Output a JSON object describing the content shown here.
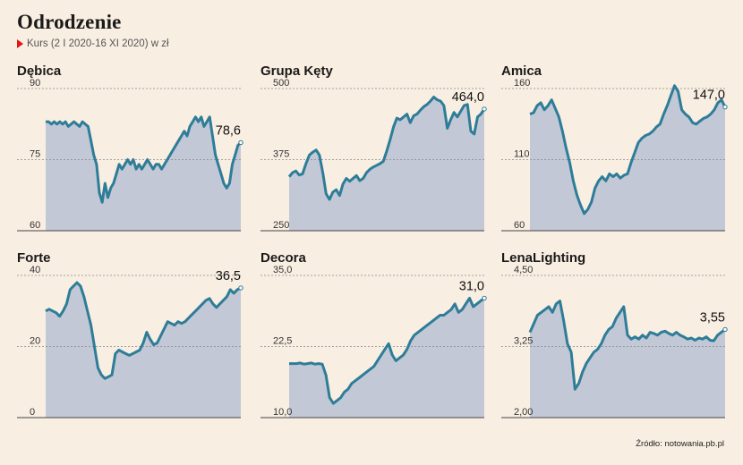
{
  "header": {
    "title": "Odrodzenie",
    "subtitle": "Kurs (2 I 2020-16 XI 2020) w zł"
  },
  "source": "Źródło: notowania.pb.pl",
  "colors": {
    "line": "#2e7d98",
    "area": "#c3c8d6",
    "accent": "#e0161b",
    "grid": "#888888"
  },
  "chart_data": [
    {
      "type": "area",
      "title": "Dębica",
      "ylim": [
        60,
        90
      ],
      "yticks": [
        "90",
        "75",
        "60"
      ],
      "last_label": "78,6",
      "values": [
        83,
        83,
        82.5,
        83,
        82.5,
        83,
        82.5,
        83,
        82,
        82.5,
        83,
        82.5,
        82,
        83,
        82.5,
        82,
        79,
        76,
        74,
        68,
        66,
        70,
        67,
        69,
        70,
        72,
        74,
        73,
        74,
        75,
        74,
        75,
        73,
        74,
        73,
        74,
        75,
        74,
        73,
        74,
        74,
        73,
        74,
        75,
        76,
        77,
        78,
        79,
        80,
        81,
        80,
        82,
        83,
        84,
        83,
        84,
        82,
        83,
        84,
        80,
        76,
        74,
        72,
        70,
        69,
        70,
        74,
        76,
        78,
        78.6
      ]
    },
    {
      "type": "area",
      "title": "Grupa Kęty",
      "ylim": [
        250,
        500
      ],
      "yticks": [
        "500",
        "375",
        "250"
      ],
      "last_label": "464,0",
      "values": [
        345,
        352,
        355,
        348,
        350,
        368,
        383,
        388,
        392,
        383,
        352,
        315,
        305,
        318,
        322,
        312,
        332,
        342,
        337,
        342,
        347,
        338,
        342,
        352,
        358,
        362,
        365,
        368,
        372,
        390,
        410,
        432,
        448,
        445,
        450,
        455,
        440,
        452,
        455,
        462,
        468,
        472,
        478,
        485,
        480,
        478,
        470,
        430,
        445,
        458,
        450,
        460,
        470,
        472,
        425,
        420,
        450,
        455,
        464
      ]
    },
    {
      "type": "area",
      "title": "Amica",
      "ylim": [
        60,
        160
      ],
      "yticks": [
        "160",
        "110",
        "60"
      ],
      "last_label": "147,0",
      "values": [
        142,
        143,
        148,
        150,
        145,
        148,
        152,
        146,
        140,
        130,
        118,
        108,
        95,
        85,
        78,
        72,
        75,
        80,
        90,
        95,
        98,
        95,
        100,
        98,
        100,
        97,
        99,
        100,
        108,
        115,
        122,
        125,
        127,
        128,
        130,
        133,
        135,
        142,
        148,
        155,
        162,
        158,
        145,
        142,
        140,
        136,
        135,
        137,
        139,
        140,
        142,
        145,
        150,
        152,
        147
      ]
    },
    {
      "type": "area",
      "title": "Forte",
      "ylim": [
        0,
        40
      ],
      "yticks": [
        "40",
        "20",
        "0"
      ],
      "last_label": "36,5",
      "values": [
        30,
        30.5,
        30,
        29.5,
        28.5,
        30,
        32,
        36,
        37,
        38,
        37,
        34,
        30,
        26,
        20,
        14,
        12,
        11,
        11.5,
        12,
        18,
        19,
        18.5,
        18,
        17.5,
        18,
        18.5,
        19,
        21,
        24,
        22,
        20.5,
        21,
        23,
        25,
        27,
        26.5,
        26,
        27,
        26.5,
        27,
        28,
        29,
        30,
        31,
        32,
        33,
        33.5,
        32,
        31,
        32,
        33,
        34,
        36,
        35,
        36,
        36.5
      ]
    },
    {
      "type": "area",
      "title": "Decora",
      "ylim": [
        10,
        35
      ],
      "yticks": [
        "35,0",
        "22,5",
        "10,0"
      ],
      "last_label": "31,0",
      "values": [
        19.5,
        19.5,
        19.5,
        19.6,
        19.4,
        19.5,
        19.6,
        19.4,
        19.5,
        19.4,
        17.5,
        13.5,
        12.5,
        13,
        13.5,
        14.5,
        15,
        16,
        16.5,
        17,
        17.5,
        18,
        18.5,
        19,
        20,
        21,
        22,
        23,
        21,
        20,
        20.5,
        21,
        22,
        23.5,
        24.5,
        25,
        25.5,
        26,
        26.5,
        27,
        27.5,
        28,
        28,
        28.5,
        29,
        30,
        28.5,
        29,
        30,
        31,
        29.5,
        30,
        30.5,
        31
      ]
    },
    {
      "type": "area",
      "title": "LenaLighting",
      "ylim": [
        2.0,
        4.5
      ],
      "yticks": [
        "4,50",
        "3,25",
        "2,00"
      ],
      "last_label": "3,55",
      "values": [
        3.5,
        3.65,
        3.8,
        3.85,
        3.9,
        3.95,
        3.85,
        4.0,
        4.05,
        3.7,
        3.3,
        3.15,
        2.5,
        2.6,
        2.8,
        2.95,
        3.05,
        3.15,
        3.2,
        3.3,
        3.45,
        3.55,
        3.6,
        3.75,
        3.85,
        3.95,
        3.45,
        3.38,
        3.42,
        3.38,
        3.45,
        3.4,
        3.5,
        3.48,
        3.45,
        3.5,
        3.52,
        3.48,
        3.45,
        3.5,
        3.45,
        3.42,
        3.38,
        3.4,
        3.36,
        3.4,
        3.38,
        3.42,
        3.36,
        3.35,
        3.45,
        3.5,
        3.55
      ]
    }
  ]
}
